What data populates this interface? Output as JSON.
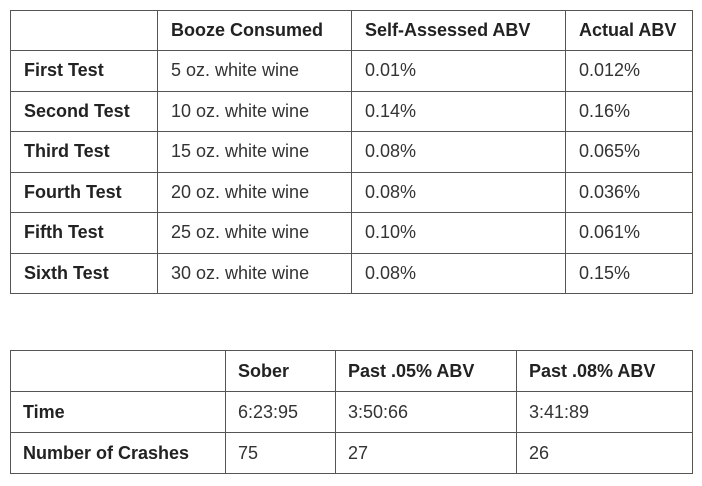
{
  "tests_table": {
    "headers": [
      "",
      "Booze Consumed",
      "Self-Assessed ABV",
      "Actual ABV"
    ],
    "rows": [
      {
        "label": "First Test",
        "booze": "5 oz. white wine",
        "self_abv": "0.01%",
        "actual_abv": "0.012%"
      },
      {
        "label": "Second Test",
        "booze": "10 oz. white wine",
        "self_abv": "0.14%",
        "actual_abv": "0.16%"
      },
      {
        "label": "Third Test",
        "booze": "15 oz. white wine",
        "self_abv": "0.08%",
        "actual_abv": "0.065%"
      },
      {
        "label": "Fourth Test",
        "booze": "20 oz. white wine",
        "self_abv": "0.08%",
        "actual_abv": "0.036%"
      },
      {
        "label": "Fifth Test",
        "booze": "25 oz. white wine",
        "self_abv": "0.10%",
        "actual_abv": "0.061%"
      },
      {
        "label": "Sixth Test",
        "booze": "30 oz. white wine",
        "self_abv": "0.08%",
        "actual_abv": "0.15%"
      }
    ]
  },
  "results_table": {
    "headers": [
      "",
      "Sober",
      "Past .05% ABV",
      "Past .08% ABV"
    ],
    "rows": [
      {
        "label": "Time",
        "sober": "6:23:95",
        "past05": "3:50:66",
        "past08": "3:41:89"
      },
      {
        "label": "Number of Crashes",
        "sober": "75",
        "past05": "27",
        "past08": "26"
      }
    ]
  }
}
